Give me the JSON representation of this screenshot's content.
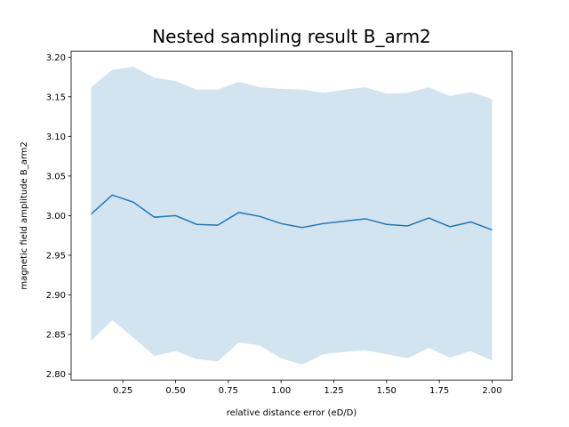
{
  "chart_data": {
    "type": "line",
    "title": "Nested sampling result B_arm2",
    "xlabel": "relative distance error  (eD/D)",
    "ylabel": "magnetic field amplitude B_arm2",
    "xlim": [
      0.005,
      2.095
    ],
    "ylim": [
      2.7925,
      3.2075
    ],
    "xticks": [
      0.25,
      0.5,
      0.75,
      1.0,
      1.25,
      1.5,
      1.75,
      2.0
    ],
    "xtick_labels": [
      "0.25",
      "0.50",
      "0.75",
      "1.00",
      "1.25",
      "1.50",
      "1.75",
      "2.00"
    ],
    "yticks": [
      2.8,
      2.85,
      2.9,
      2.95,
      3.0,
      3.05,
      3.1,
      3.15,
      3.2
    ],
    "ytick_labels": [
      "2.80",
      "2.85",
      "2.90",
      "2.95",
      "3.00",
      "3.05",
      "3.10",
      "3.15",
      "3.20"
    ],
    "grid": false,
    "x": [
      0.1,
      0.2,
      0.3,
      0.4,
      0.5,
      0.6,
      0.7,
      0.8,
      0.9,
      1.0,
      1.1,
      1.2,
      1.3,
      1.4,
      1.5,
      1.6,
      1.7,
      1.8,
      1.9,
      2.0
    ],
    "series": [
      {
        "values": [
          3.002,
          3.026,
          3.017,
          2.998,
          3.0,
          2.989,
          2.988,
          3.004,
          2.999,
          2.99,
          2.985,
          2.99,
          2.993,
          2.996,
          2.989,
          2.987,
          2.997,
          2.986,
          2.992,
          2.982
        ],
        "lower": [
          2.842,
          2.868,
          2.846,
          2.823,
          2.829,
          2.819,
          2.816,
          2.84,
          2.836,
          2.82,
          2.812,
          2.825,
          2.828,
          2.83,
          2.825,
          2.82,
          2.833,
          2.821,
          2.829,
          2.817
        ],
        "upper": [
          3.162,
          3.184,
          3.188,
          3.174,
          3.17,
          3.159,
          3.159,
          3.169,
          3.162,
          3.16,
          3.159,
          3.155,
          3.159,
          3.162,
          3.154,
          3.155,
          3.162,
          3.151,
          3.156,
          3.147
        ],
        "color": "#1f77b4",
        "band_color": "#1f77b4",
        "band_opacity": 0.2
      }
    ]
  }
}
